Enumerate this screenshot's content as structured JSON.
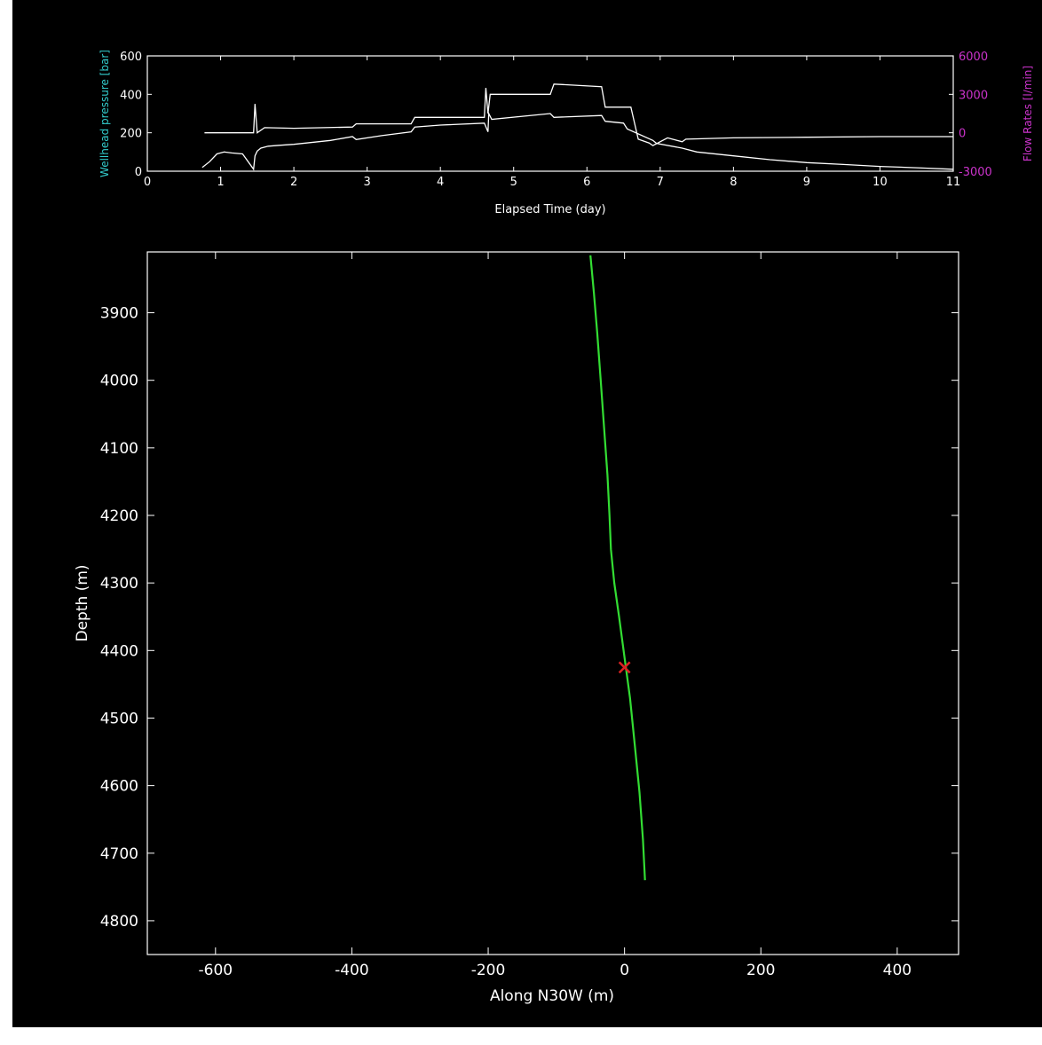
{
  "chart_data": [
    {
      "type": "line",
      "xlabel": "Elapsed Time (day)",
      "ylabel": "Wellhead pressure [bar]",
      "ylabel_right": "Flow Rates [l/min]",
      "xlim": [
        0,
        11
      ],
      "ylim": [
        0,
        600
      ],
      "ylim_right": [
        -3000,
        6000
      ],
      "xticks": [
        "0",
        "1",
        "2",
        "3",
        "4",
        "5",
        "6",
        "7",
        "8",
        "9",
        "10",
        "11"
      ],
      "yticks": [
        "0",
        "200",
        "400",
        "600"
      ],
      "yticks_right": [
        "-3000",
        "0",
        "3000",
        "6000"
      ],
      "grid": false,
      "colors": {
        "background": "#000000",
        "axes": "#ffffff",
        "ylabel_color": "#33cccc",
        "ylabel_right_color": "#cc33cc",
        "series": "#ffffff"
      },
      "series": [
        {
          "x": [
            0.75,
            0.85,
            0.95,
            1.05,
            1.15,
            1.3,
            1.45,
            1.47,
            1.5,
            1.55,
            1.65,
            1.8,
            2.0,
            2.5,
            2.8,
            2.85,
            3.2,
            3.6,
            3.65,
            4.0,
            4.6,
            4.65,
            4.66,
            4.7,
            5.5,
            5.55,
            6.2,
            6.25,
            6.5,
            6.55,
            6.9,
            6.95,
            7.3,
            7.5,
            8.0,
            8.5,
            9.0,
            9.5,
            10.0,
            10.5,
            11.0
          ],
          "values": [
            20,
            50,
            90,
            100,
            95,
            90,
            10,
            80,
            105,
            120,
            130,
            135,
            140,
            160,
            180,
            165,
            185,
            205,
            230,
            240,
            250,
            205,
            300,
            270,
            300,
            280,
            290,
            260,
            250,
            220,
            160,
            145,
            120,
            100,
            80,
            60,
            45,
            35,
            25,
            18,
            10
          ]
        },
        {
          "x": [
            0.78,
            1.45,
            1.47,
            1.5,
            1.6,
            2.0,
            2.8,
            2.85,
            3.6,
            3.65,
            4.6,
            4.62,
            4.65,
            4.68,
            5.5,
            5.55,
            6.2,
            6.25,
            6.6,
            6.7,
            6.85,
            6.9,
            7.1,
            7.3,
            7.35,
            8.0,
            9.0,
            10.0,
            11.0
          ],
          "values": [
            0,
            0,
            2250,
            0,
            400,
            350,
            450,
            700,
            700,
            1200,
            1200,
            3500,
            1500,
            3000,
            3000,
            3800,
            3600,
            2000,
            2000,
            -500,
            -800,
            -1000,
            -400,
            -700,
            -500,
            -400,
            -350,
            -300,
            -300
          ]
        }
      ]
    },
    {
      "type": "line",
      "xlabel": "Along N30W (m)",
      "ylabel": "Depth (m)",
      "xlim": [
        -700,
        490
      ],
      "ylim": [
        3810,
        4850
      ],
      "y_inverted": true,
      "xticks": [
        "-600",
        "-400",
        "-200",
        "0",
        "200",
        "400"
      ],
      "yticks": [
        "3900",
        "4000",
        "4100",
        "4200",
        "4300",
        "4400",
        "4500",
        "4600",
        "4700",
        "4800"
      ],
      "grid": false,
      "colors": {
        "background": "#000000",
        "axes": "#ffffff",
        "well_trace": "#33dd33",
        "marker": "#dd2222"
      },
      "series": [
        {
          "x": [
            -50,
            -45,
            -40,
            -35,
            -30,
            -25,
            -22,
            -20,
            -15,
            -8,
            0,
            8,
            15,
            22,
            27,
            30
          ],
          "values": [
            3815,
            3870,
            3930,
            4000,
            4070,
            4140,
            4200,
            4250,
            4300,
            4350,
            4410,
            4470,
            4540,
            4610,
            4680,
            4740
          ]
        }
      ],
      "marker": {
        "x": 0,
        "y": 4425,
        "symbol": "x"
      }
    }
  ]
}
